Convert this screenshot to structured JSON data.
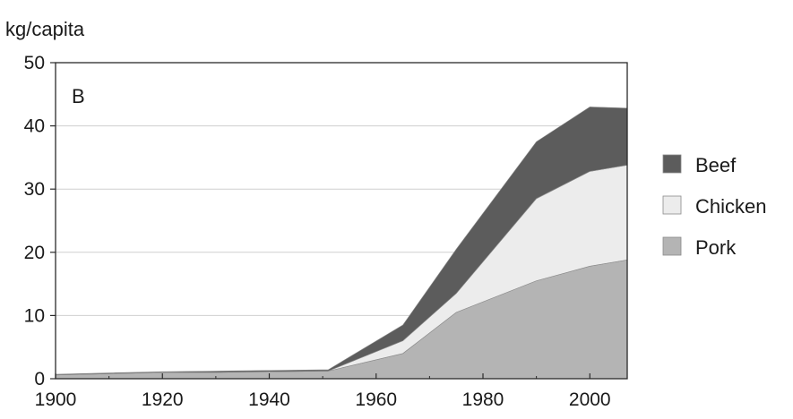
{
  "chart_data": {
    "type": "area",
    "stacked": true,
    "panel_label": "B",
    "title": "",
    "xlabel": "",
    "ylabel": "kg/capita",
    "x": [
      1900,
      1910,
      1920,
      1930,
      1940,
      1950,
      1951,
      1965,
      1975,
      1990,
      2000,
      2007
    ],
    "series": [
      {
        "name": "Pork",
        "color": "#b4b4b4",
        "values": [
          0.6,
          0.8,
          1.0,
          1.0,
          1.1,
          1.2,
          1.2,
          4.0,
          10.5,
          15.5,
          17.8,
          18.8
        ]
      },
      {
        "name": "Chicken",
        "color": "#ececec",
        "values": [
          0.0,
          0.0,
          0.0,
          0.0,
          0.0,
          0.0,
          0.0,
          2.0,
          3.0,
          13.0,
          15.0,
          15.0
        ]
      },
      {
        "name": "Beef",
        "color": "#5c5c5c",
        "values": [
          0.1,
          0.1,
          0.1,
          0.2,
          0.2,
          0.2,
          0.2,
          2.5,
          7.0,
          9.0,
          10.2,
          9.0
        ]
      }
    ],
    "legend_order": [
      "Beef",
      "Chicken",
      "Pork"
    ],
    "legend_position": "right",
    "xlim": [
      1900,
      2007
    ],
    "ylim": [
      0,
      50
    ],
    "xticks": [
      1900,
      1920,
      1940,
      1960,
      1980,
      2000
    ],
    "yticks": [
      0,
      10,
      20,
      30,
      40,
      50
    ],
    "grid": "horizontal"
  }
}
